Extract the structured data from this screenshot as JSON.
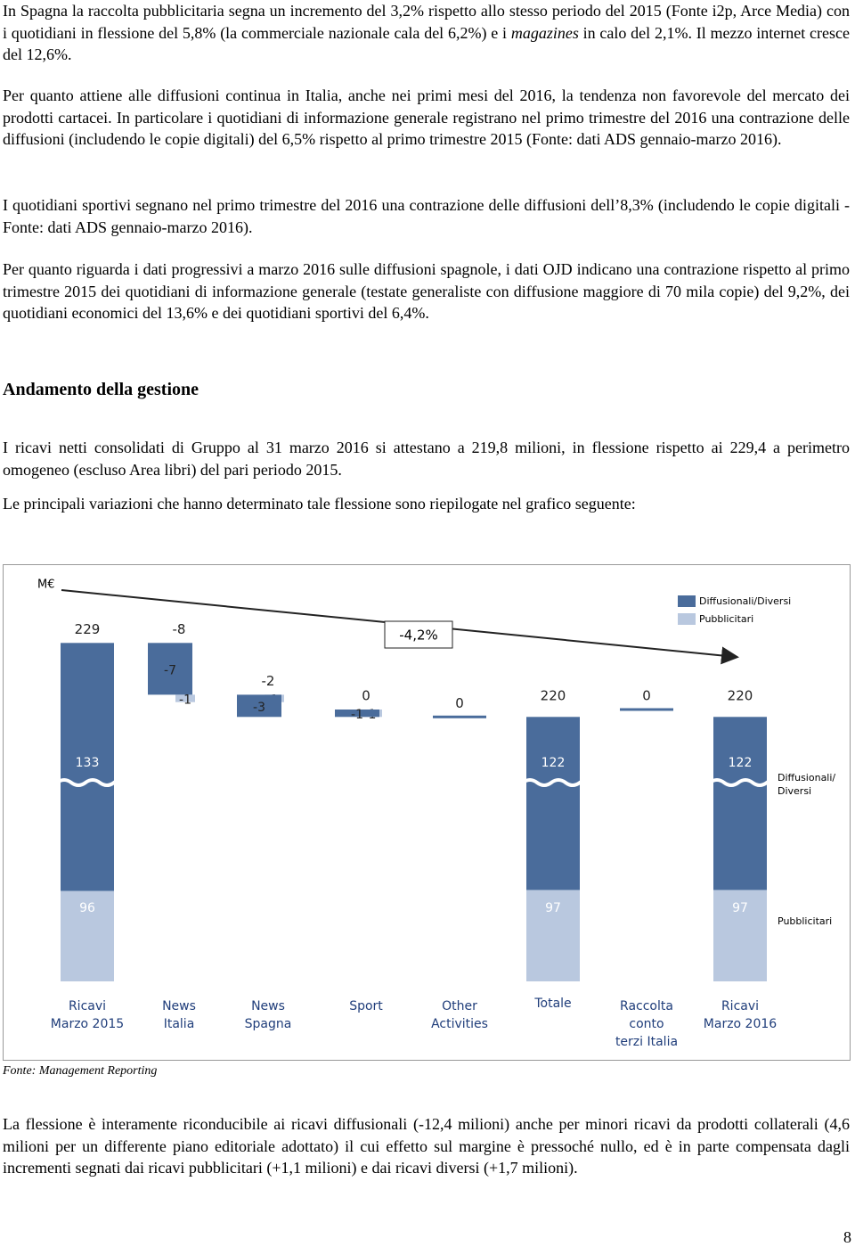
{
  "paragraphs_top": [
    [
      "In Spagna la raccolta pubblicitaria segna un incremento del 3,2% rispetto allo stesso periodo del 2015 (Fonte i2p, Arce Media) con i quotidiani in flessione del 5,8% (la commerciale nazionale cala del 6,2%) e i ",
      "magazines",
      " in calo del 2,1%. Il mezzo internet cresce del 12,6%."
    ],
    "Per quanto attiene alle diffusioni continua in Italia, anche nei primi mesi del 2016, la tendenza non favorevole del mercato dei prodotti cartacei. In particolare i quotidiani di informazione generale registrano nel primo trimestre del 2016 una contrazione delle diffusioni (includendo le copie digitali) del 6,5% rispetto al primo trimestre 2015  (Fonte: dati ADS gennaio-marzo 2016).",
    "I quotidiani sportivi segnano nel primo trimestre del 2016 una contrazione delle diffusioni dell’8,3% (includendo le copie digitali - Fonte: dati ADS gennaio-marzo 2016).",
    "Per quanto riguarda i dati progressivi a marzo 2016 sulle diffusioni spagnole, i dati OJD indicano una contrazione rispetto al primo trimestre 2015  dei quotidiani di informazione generale (testate generaliste con diffusione maggiore di 70 mila copie) del 9,2%, dei quotidiani economici del 13,6% e dei quotidiani sportivi del 6,4%."
  ],
  "heading": "Andamento della gestione",
  "paragraphs_mid": [
    "I ricavi netti consolidati di Gruppo al 31 marzo 2016 si attestano a 219,8 milioni, in flessione rispetto ai 229,4 a perimetro omogeneo (escluso Area libri) del pari periodo 2015.",
    "Le principali variazioni che hanno determinato tale flessione sono  riepilogate nel grafico seguente:"
  ],
  "chart_data": {
    "type": "waterfall",
    "unit": "M€",
    "change_label": "-4,2%",
    "categories": [
      "Ricavi\nMarzo 2015",
      "News\nItalia",
      "News\nSpagna",
      "Sport",
      "Other\nActivities",
      "Totale",
      "Raccolta\nconto\nterzi Italia",
      "Ricavi\nMarzo 2016"
    ],
    "measure": [
      "absolute",
      "relative",
      "relative",
      "relative",
      "relative",
      "absolute",
      "relative",
      "absolute"
    ],
    "totals": [
      229,
      -8,
      -2,
      0,
      0,
      220,
      0,
      220
    ],
    "series": [
      {
        "name": "Diffusionali/Diversi",
        "side_label": "Diffusionali/\nDiversi",
        "color": "#4a6c9b",
        "values": [
          133,
          -7,
          -3,
          -1,
          null,
          122,
          null,
          122
        ]
      },
      {
        "name": "Pubblicitari",
        "side_label": "Pubblicitari",
        "color": "#b9c8df",
        "values": [
          96,
          -1,
          1,
          1,
          null,
          97,
          null,
          97
        ]
      }
    ]
  },
  "source": "Fonte: Management Reporting",
  "paragraphs_bottom": [
    "La flessione è interamente riconducibile ai ricavi diffusionali (-12,4 milioni) anche per minori ricavi da prodotti collaterali (4,6 milioni per un differente piano editoriale adottato) il cui effetto sul margine è pressoché nullo, ed è in parte compensata dagli incrementi segnati dai ricavi pubblicitari (+1,1 milioni) e dai ricavi diversi (+1,7 milioni)."
  ],
  "page_number": "8"
}
